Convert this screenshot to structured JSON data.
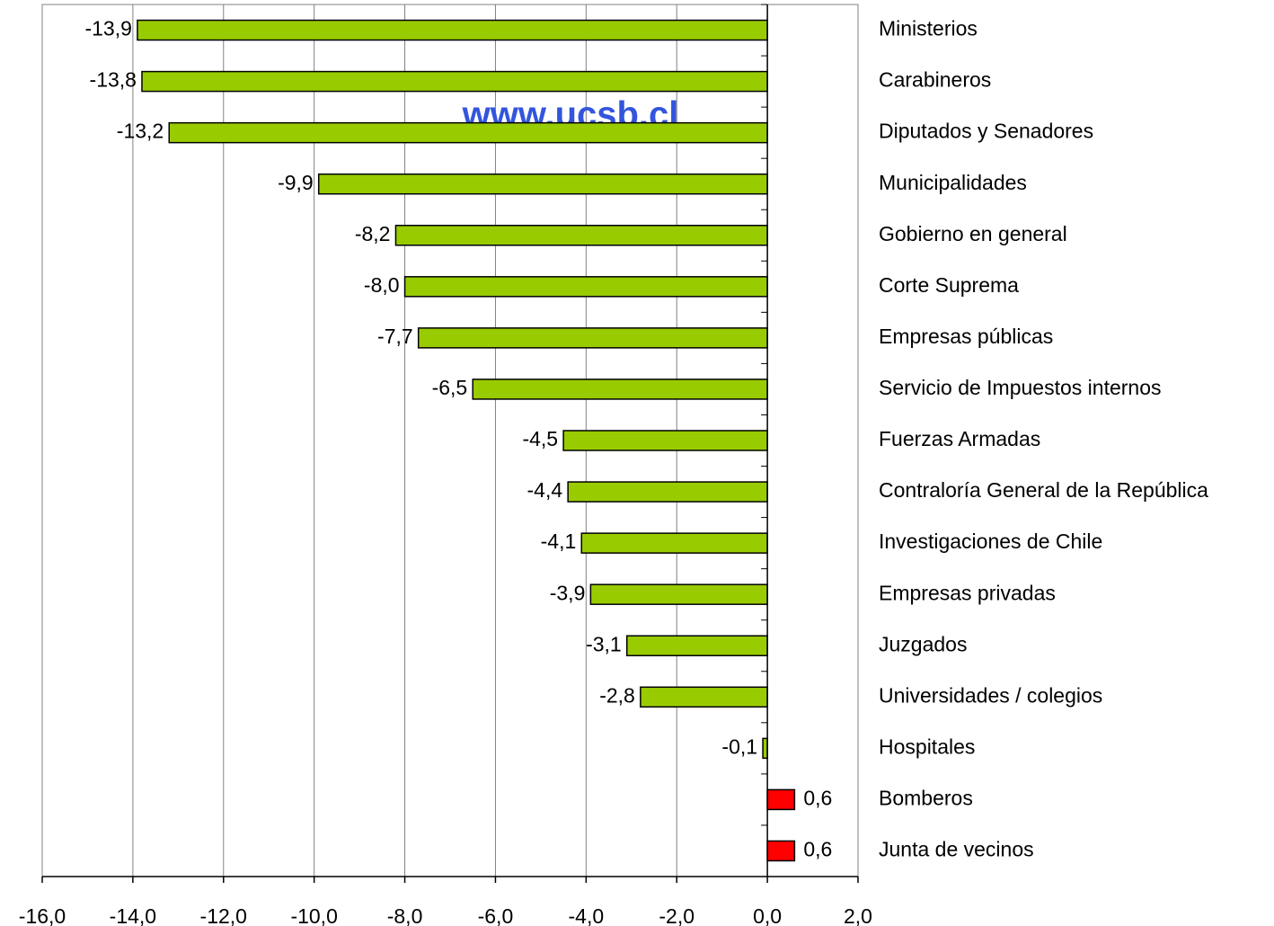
{
  "chart_data": {
    "type": "bar",
    "orientation": "horizontal",
    "watermark": "www.ucsb.cl",
    "categories": [
      "Ministerios",
      "Carabineros",
      "Diputados y Senadores",
      "Municipalidades",
      "Gobierno en general",
      "Corte Suprema",
      "Empresas públicas",
      "Servicio de Impuestos internos",
      "Fuerzas Armadas",
      "Contraloría General de la República",
      "Investigaciones de Chile",
      "Empresas privadas",
      "Juzgados",
      "Universidades / colegios",
      "Hospitales",
      "Bomberos",
      "Junta de vecinos"
    ],
    "values": [
      -13.9,
      -13.8,
      -13.2,
      -9.9,
      -8.2,
      -8.0,
      -7.7,
      -6.5,
      -4.5,
      -4.4,
      -4.1,
      -3.9,
      -3.1,
      -2.8,
      -0.1,
      0.6,
      0.6
    ],
    "value_labels": [
      "-13,9",
      "-13,8",
      "-13,2",
      "-9,9",
      "-8,2",
      "-8,0",
      "-7,7",
      "-6,5",
      "-4,5",
      "-4,4",
      "-4,1",
      "-3,9",
      "-3,1",
      "-2,8",
      "-0,1",
      "0,6",
      "0,6"
    ],
    "colors": [
      "#99cc00",
      "#99cc00",
      "#99cc00",
      "#99cc00",
      "#99cc00",
      "#99cc00",
      "#99cc00",
      "#99cc00",
      "#99cc00",
      "#99cc00",
      "#99cc00",
      "#99cc00",
      "#99cc00",
      "#99cc00",
      "#99cc00",
      "#ff0000",
      "#ff0000"
    ],
    "xlim": [
      -16,
      2
    ],
    "xticks": [
      {
        "value": -16,
        "label": "-16,0"
      },
      {
        "value": -14,
        "label": "-14,0"
      },
      {
        "value": -12,
        "label": "-12,0"
      },
      {
        "value": -10,
        "label": "-10,0"
      },
      {
        "value": -8,
        "label": "-8,0"
      },
      {
        "value": -6,
        "label": "-6,0"
      },
      {
        "value": -4,
        "label": "-4,0"
      },
      {
        "value": -2,
        "label": "-2,0"
      },
      {
        "value": 0,
        "label": "0,0"
      },
      {
        "value": 2,
        "label": "2,0"
      }
    ],
    "grid": true
  }
}
